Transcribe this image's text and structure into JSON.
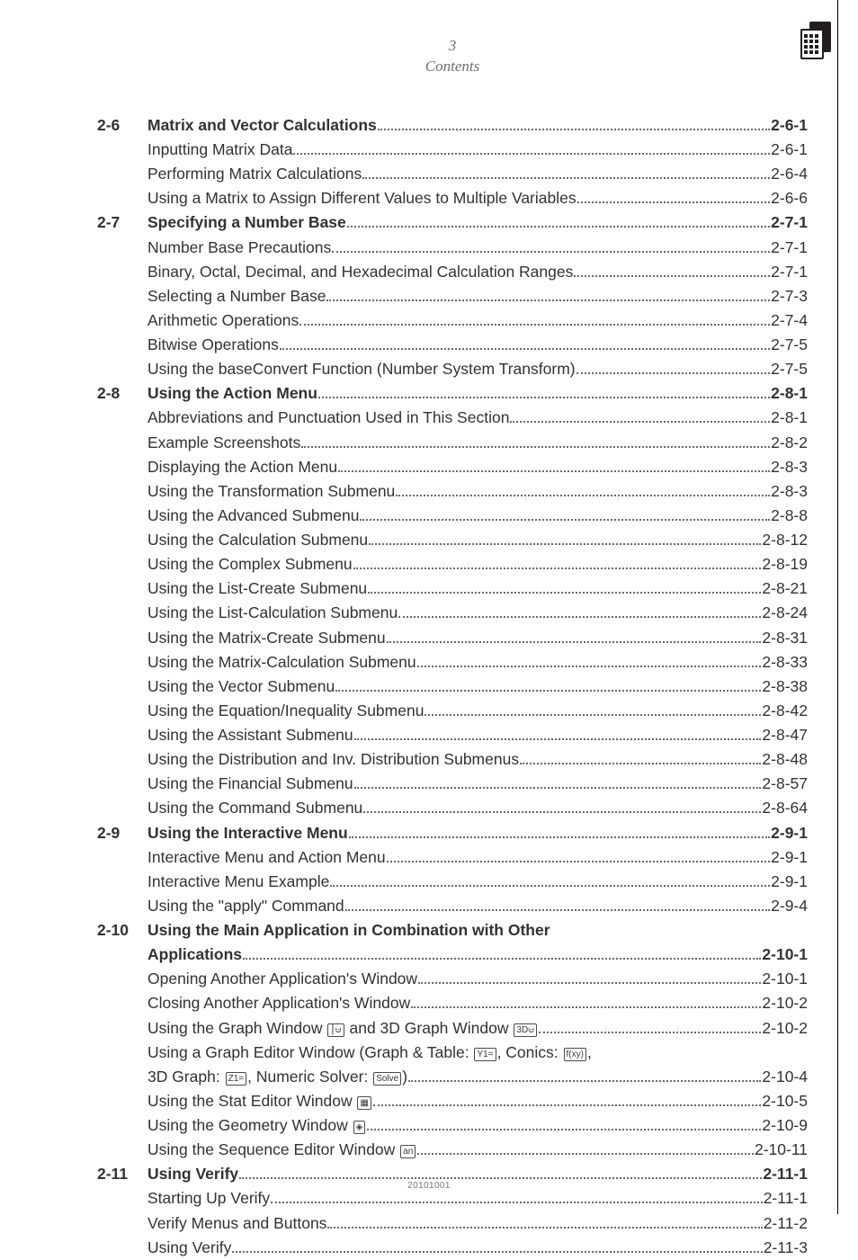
{
  "header": {
    "page_number": "3",
    "title": "Contents"
  },
  "footer_code": "20101001",
  "toc": [
    {
      "num": "2-6",
      "title": "Matrix and Vector Calculations",
      "page": "2-6-1",
      "items": [
        {
          "title": "Inputting Matrix Data",
          "page": "2-6-1"
        },
        {
          "title": "Performing Matrix Calculations",
          "page": "2-6-4"
        },
        {
          "title": "Using a Matrix to Assign Different Values to Multiple Variables",
          "page": "2-6-6"
        }
      ]
    },
    {
      "num": "2-7",
      "title": "Specifying a Number Base",
      "page": "2-7-1",
      "items": [
        {
          "title": "Number Base Precautions",
          "page": "2-7-1"
        },
        {
          "title": "Binary, Octal, Decimal, and Hexadecimal Calculation Ranges",
          "page": "2-7-1"
        },
        {
          "title": "Selecting a Number Base",
          "page": "2-7-3"
        },
        {
          "title": "Arithmetic Operations",
          "page": "2-7-4"
        },
        {
          "title": "Bitwise Operations",
          "page": "2-7-5"
        },
        {
          "title": "Using the baseConvert Function (Number System Transform)",
          "page": "2-7-5"
        }
      ]
    },
    {
      "num": "2-8",
      "title": "Using the Action Menu",
      "page": "2-8-1",
      "items": [
        {
          "title": "Abbreviations and Punctuation Used in This Section",
          "page": "2-8-1"
        },
        {
          "title": "Example Screenshots",
          "page": "2-8-2"
        },
        {
          "title": "Displaying the Action Menu",
          "page": "2-8-3"
        },
        {
          "title": "Using the Transformation Submenu",
          "page": "2-8-3"
        },
        {
          "title": "Using the Advanced Submenu",
          "page": "2-8-8"
        },
        {
          "title": "Using the Calculation Submenu",
          "page": "2-8-12"
        },
        {
          "title": "Using the Complex Submenu",
          "page": "2-8-19"
        },
        {
          "title": "Using the List-Create Submenu",
          "page": "2-8-21"
        },
        {
          "title": "Using the List-Calculation Submenu",
          "page": "2-8-24"
        },
        {
          "title": "Using the Matrix-Create Submenu",
          "page": "2-8-31"
        },
        {
          "title": "Using the Matrix-Calculation Submenu",
          "page": "2-8-33"
        },
        {
          "title": "Using the Vector Submenu",
          "page": "2-8-38"
        },
        {
          "title": "Using the Equation/Inequality Submenu",
          "page": "2-8-42"
        },
        {
          "title": "Using the Assistant Submenu",
          "page": "2-8-47"
        },
        {
          "title": "Using the Distribution and Inv. Distribution Submenus",
          "page": "2-8-48"
        },
        {
          "title": "Using the Financial Submenu",
          "page": "2-8-57"
        },
        {
          "title": "Using the Command Submenu",
          "page": "2-8-64"
        }
      ]
    },
    {
      "num": "2-9",
      "title": "Using the Interactive Menu",
      "page": "2-9-1",
      "items": [
        {
          "title": "Interactive Menu and Action Menu",
          "page": "2-9-1"
        },
        {
          "title": "Interactive Menu Example",
          "page": "2-9-1"
        },
        {
          "title": "Using the \"apply\" Command",
          "page": "2-9-4"
        }
      ]
    },
    {
      "num": "2-10",
      "title": "Using the Main Application in Combination with Other Applications",
      "page": "2-10-1",
      "items": [
        {
          "title": "Opening Another Application's Window",
          "page": "2-10-1"
        },
        {
          "title": "Closing Another Application's Window",
          "page": "2-10-2"
        },
        {
          "title_html": "Using the Graph Window <span class='key' data-name='graph-icon' data-interactable='false'>⎮⩁</span> and 3D Graph Window <span class='key' data-name='3d-graph-icon' data-interactable='false'>3D⩁</span>",
          "page": "2-10-2"
        },
        {
          "title_html": "Using a Graph Editor Window (Graph & Table: <span class='key' data-name='graph-table-icon' data-interactable='false'>Y1=</span>, Conics: <span class='key' data-name='conics-icon' data-interactable='false'>f(xy)</span>,",
          "no_dots": true
        },
        {
          "title_html": "3D Graph: <span class='key' data-name='3d-graph-editor-icon' data-interactable='false'>Z1=</span>, Numeric Solver: <span class='key' data-name='solver-icon' data-interactable='false'>Solve</span>)",
          "page": "2-10-4"
        },
        {
          "title_html": "Using the Stat Editor Window <span class='key' data-name='stat-editor-icon' data-interactable='false'>▦</span>",
          "page": "2-10-5"
        },
        {
          "title_html": "Using the Geometry Window <span class='key' data-name='geometry-icon' data-interactable='false'>◈</span>",
          "page": "2-10-9"
        },
        {
          "title_html": "Using the Sequence Editor Window <span class='key' data-name='sequence-editor-icon' data-interactable='false'>an</span>",
          "page": "2-10-11"
        }
      ]
    },
    {
      "num": "2-11",
      "title": "Using Verify",
      "page": "2-11-1",
      "items": [
        {
          "title": "Starting Up Verify",
          "page": "2-11-1"
        },
        {
          "title": "Verify Menus and Buttons",
          "page": "2-11-2"
        },
        {
          "title": "Using Verify",
          "page": "2-11-3"
        }
      ]
    }
  ]
}
